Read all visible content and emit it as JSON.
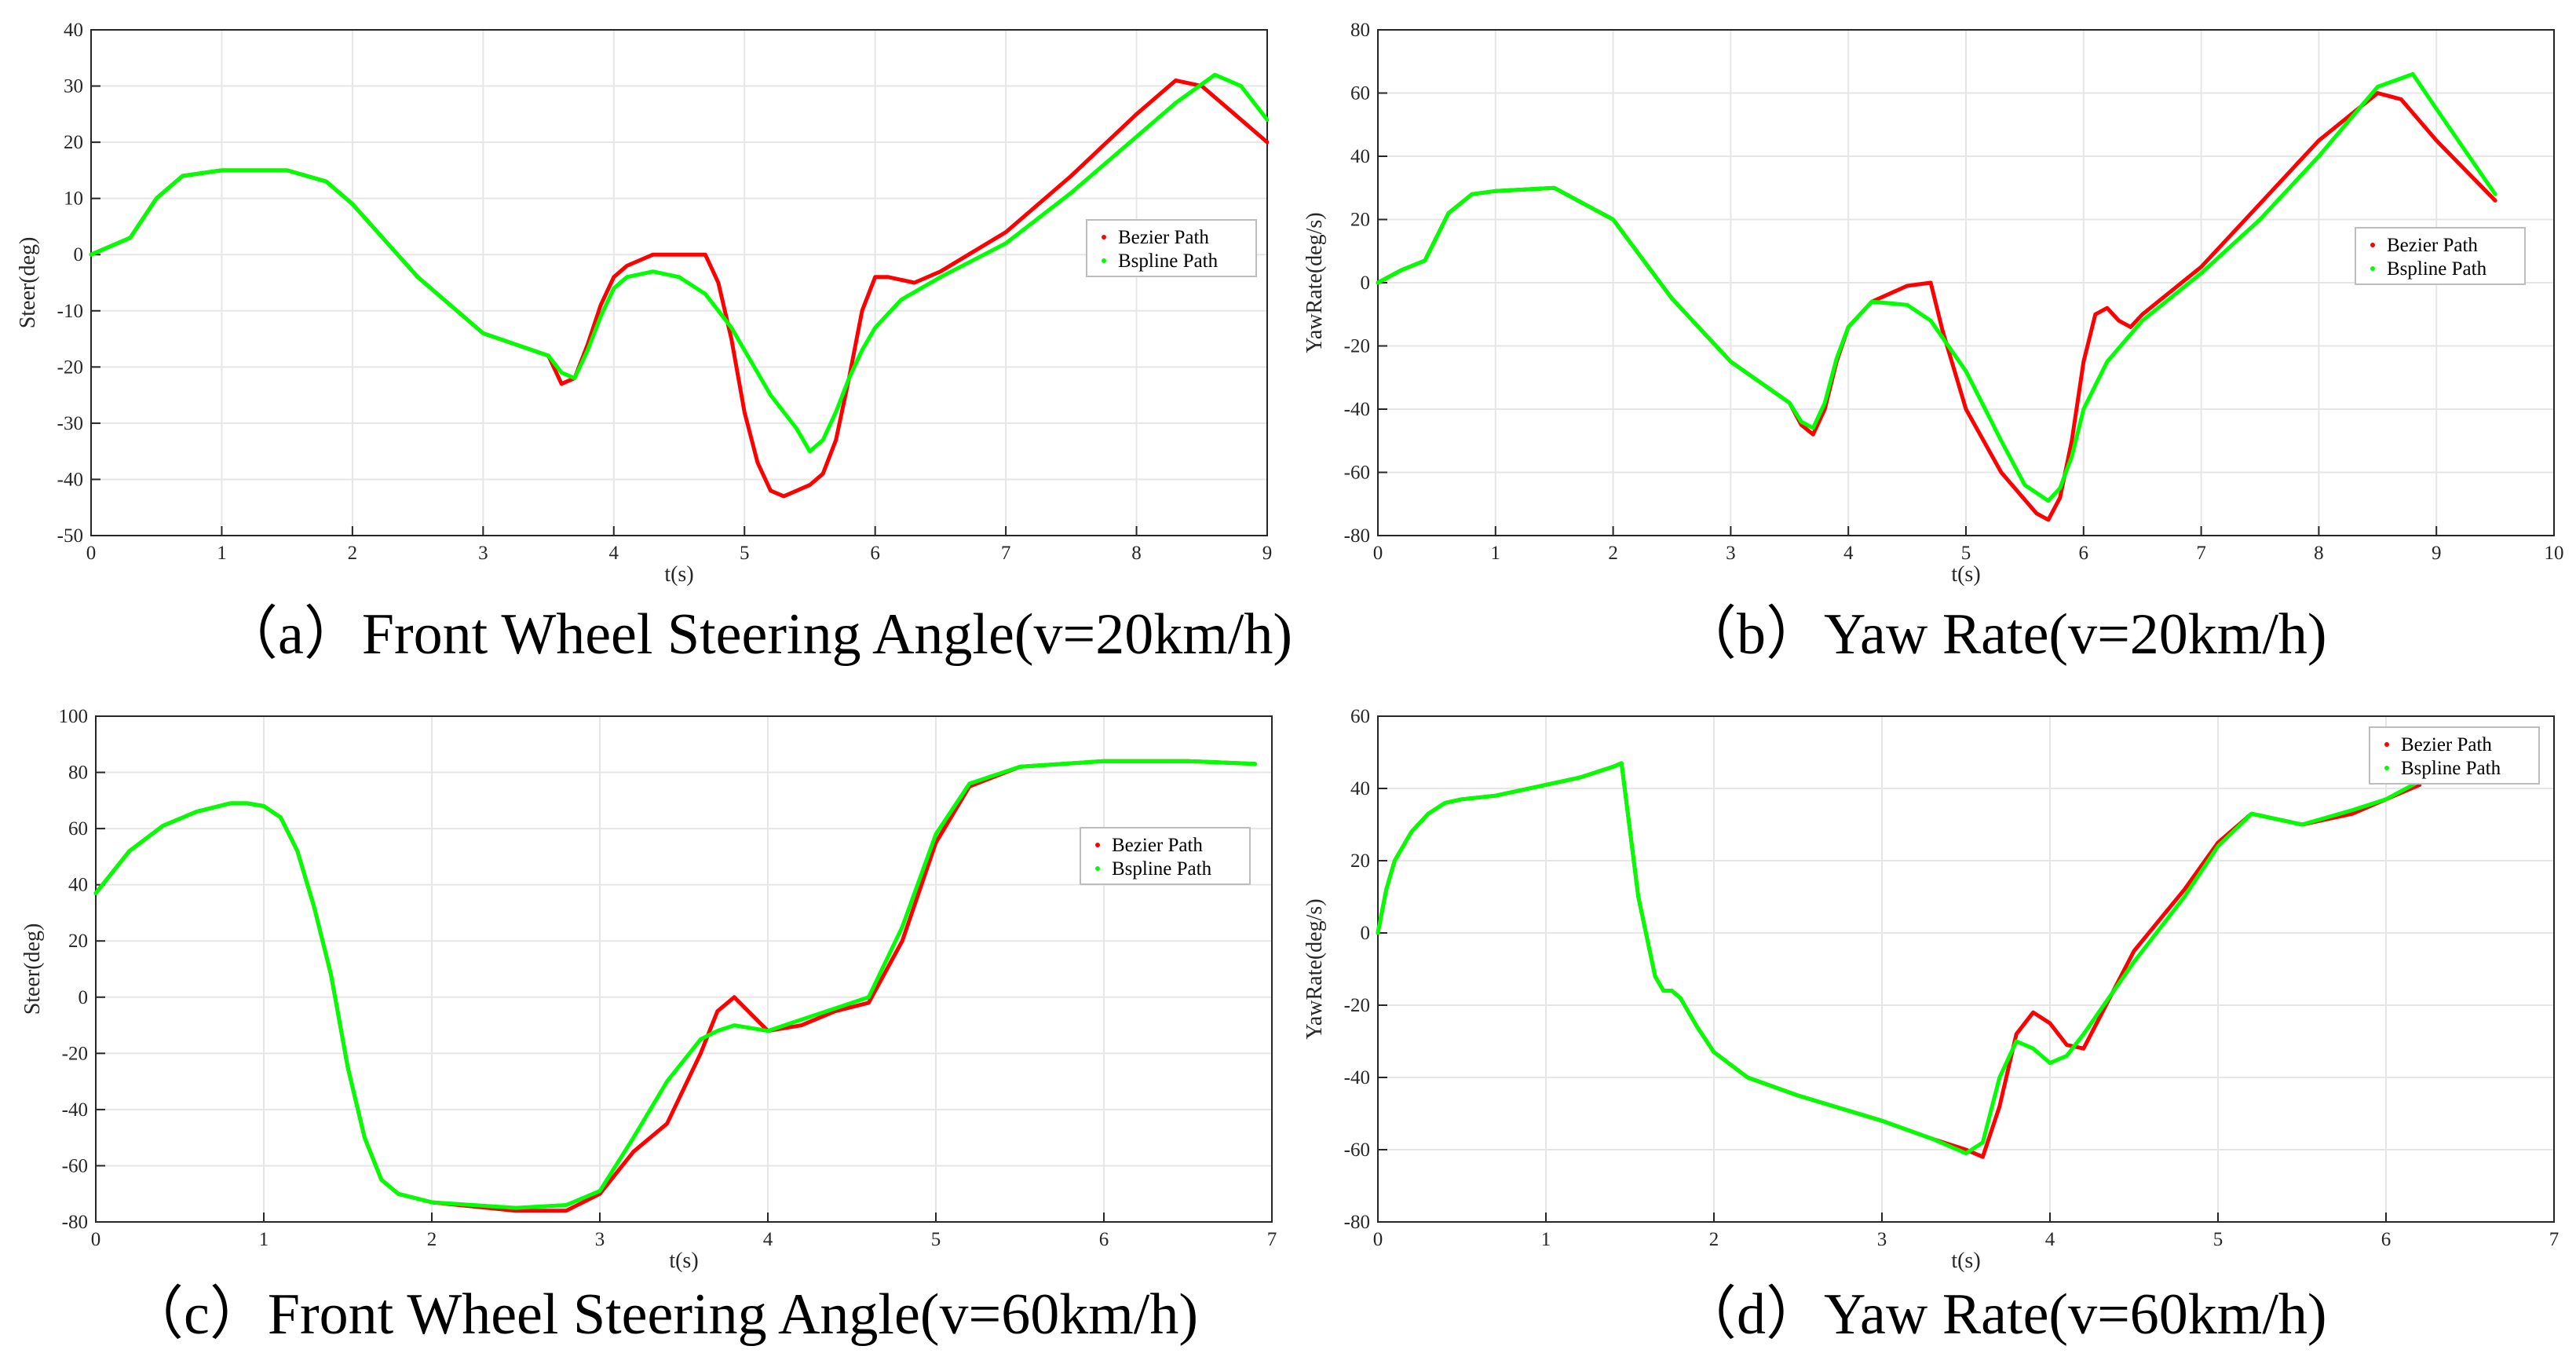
{
  "colors": {
    "bezier": "#ff0000",
    "bspline": "#00ff00"
  },
  "chart_data": [
    {
      "type": "line",
      "caption": "（a）Front Wheel Steering Angle(v=20km/h)",
      "xlabel": "t(s)",
      "ylabel": "Steer(deg)",
      "xlim": [
        0,
        9
      ],
      "ylim": [
        -50,
        40
      ],
      "xticks": [
        0,
        1,
        2,
        3,
        4,
        5,
        6,
        7,
        8,
        9
      ],
      "yticks": [
        -50,
        -40,
        -30,
        -20,
        -10,
        0,
        10,
        20,
        30,
        40
      ],
      "grid": true,
      "legend_position": "right",
      "series": [
        {
          "name": "Bezier Path",
          "color": "#ff0000",
          "x": [
            0,
            0.3,
            0.5,
            0.7,
            1.0,
            1.5,
            1.8,
            2.0,
            2.5,
            3.0,
            3.5,
            3.6,
            3.7,
            3.8,
            3.9,
            4.0,
            4.1,
            4.3,
            4.5,
            4.7,
            4.8,
            4.9,
            5.0,
            5.1,
            5.2,
            5.3,
            5.4,
            5.5,
            5.6,
            5.7,
            5.8,
            5.9,
            6.0,
            6.1,
            6.3,
            6.5,
            7.0,
            7.5,
            8.0,
            8.3,
            8.5,
            8.7,
            9.0
          ],
          "y": [
            0,
            3,
            10,
            14,
            15,
            15,
            13,
            9,
            -4,
            -14,
            -18,
            -23,
            -22,
            -16,
            -9,
            -4,
            -2,
            0,
            0,
            0,
            -5,
            -15,
            -28,
            -37,
            -42,
            -43,
            -42,
            -41,
            -39,
            -33,
            -22,
            -10,
            -4,
            -4,
            -5,
            -3,
            4,
            14,
            25,
            31,
            30,
            26,
            20
          ]
        },
        {
          "name": "Bspline Path",
          "color": "#00ff00",
          "x": [
            0,
            0.3,
            0.5,
            0.7,
            1.0,
            1.5,
            1.8,
            2.0,
            2.5,
            3.0,
            3.5,
            3.6,
            3.7,
            3.8,
            3.9,
            4.0,
            4.1,
            4.3,
            4.5,
            4.7,
            4.9,
            5.0,
            5.1,
            5.2,
            5.3,
            5.4,
            5.5,
            5.6,
            5.7,
            5.8,
            5.9,
            6.0,
            6.2,
            6.5,
            7.0,
            7.5,
            8.0,
            8.3,
            8.6,
            8.8,
            9.0
          ],
          "y": [
            0,
            3,
            10,
            14,
            15,
            15,
            13,
            9,
            -4,
            -14,
            -18,
            -21,
            -22,
            -17,
            -11,
            -6,
            -4,
            -3,
            -4,
            -7,
            -13,
            -17,
            -21,
            -25,
            -28,
            -31,
            -35,
            -33,
            -28,
            -22,
            -17,
            -13,
            -8,
            -4,
            2,
            11,
            21,
            27,
            32,
            30,
            24
          ]
        }
      ]
    },
    {
      "type": "line",
      "caption": "（b）Yaw Rate(v=20km/h)",
      "xlabel": "t(s)",
      "ylabel": "YawRate(deg/s)",
      "xlim": [
        0,
        10
      ],
      "ylim": [
        -80,
        80
      ],
      "xticks": [
        0,
        1,
        2,
        3,
        4,
        5,
        6,
        7,
        8,
        9,
        10
      ],
      "yticks": [
        -80,
        -60,
        -40,
        -20,
        0,
        20,
        40,
        60,
        80
      ],
      "grid": true,
      "legend_position": "right",
      "series": [
        {
          "name": "Bezier Path",
          "color": "#ff0000",
          "x": [
            0,
            0.2,
            0.4,
            0.6,
            0.8,
            1.0,
            1.5,
            2.0,
            2.5,
            3.0,
            3.5,
            3.6,
            3.7,
            3.8,
            3.9,
            4.0,
            4.2,
            4.5,
            4.7,
            4.8,
            5.0,
            5.3,
            5.6,
            5.7,
            5.8,
            5.9,
            6.0,
            6.1,
            6.2,
            6.3,
            6.4,
            6.5,
            7.0,
            7.5,
            8.0,
            8.5,
            8.7,
            9.0,
            9.5
          ],
          "y": [
            0,
            4,
            7,
            22,
            28,
            29,
            30,
            20,
            -5,
            -25,
            -38,
            -45,
            -48,
            -40,
            -25,
            -14,
            -6,
            -1,
            0,
            -15,
            -40,
            -60,
            -73,
            -75,
            -68,
            -50,
            -25,
            -10,
            -8,
            -12,
            -14,
            -10,
            5,
            25,
            45,
            60,
            58,
            45,
            26
          ]
        },
        {
          "name": "Bspline Path",
          "color": "#00ff00",
          "x": [
            0,
            0.2,
            0.4,
            0.6,
            0.8,
            1.0,
            1.5,
            2.0,
            2.5,
            3.0,
            3.5,
            3.6,
            3.7,
            3.8,
            3.9,
            4.0,
            4.2,
            4.5,
            4.7,
            5.0,
            5.3,
            5.5,
            5.7,
            5.8,
            5.9,
            6.0,
            6.2,
            6.5,
            7.0,
            7.5,
            8.0,
            8.5,
            8.8,
            9.0,
            9.5
          ],
          "y": [
            0,
            4,
            7,
            22,
            28,
            29,
            30,
            20,
            -5,
            -25,
            -38,
            -44,
            -46,
            -38,
            -24,
            -14,
            -6,
            -7,
            -12,
            -28,
            -50,
            -64,
            -69,
            -65,
            -55,
            -40,
            -25,
            -12,
            3,
            20,
            40,
            62,
            66,
            55,
            28
          ]
        }
      ]
    },
    {
      "type": "line",
      "caption": "（c）Front Wheel Steering Angle(v=60km/h)",
      "xlabel": "t(s)",
      "ylabel": "Steer(deg)",
      "xlim": [
        0,
        7
      ],
      "ylim": [
        -80,
        100
      ],
      "xticks": [
        0,
        1,
        2,
        3,
        4,
        5,
        6,
        7
      ],
      "yticks": [
        -80,
        -60,
        -40,
        -20,
        0,
        20,
        40,
        60,
        80,
        100
      ],
      "grid": true,
      "legend_position": "right",
      "series": [
        {
          "name": "Bezier Path",
          "color": "#ff0000",
          "x": [
            0,
            0.2,
            0.4,
            0.6,
            0.8,
            0.9,
            1.0,
            1.1,
            1.2,
            1.3,
            1.4,
            1.5,
            1.6,
            1.7,
            1.8,
            2.0,
            2.5,
            2.8,
            3.0,
            3.2,
            3.4,
            3.6,
            3.7,
            3.8,
            4.0,
            4.2,
            4.4,
            4.6,
            4.8,
            5.0,
            5.2,
            5.5,
            6.0,
            6.2,
            6.5,
            6.9
          ],
          "y": [
            37,
            52,
            61,
            66,
            69,
            69,
            68,
            64,
            52,
            32,
            8,
            -25,
            -50,
            -65,
            -70,
            -73,
            -76,
            -76,
            -70,
            -55,
            -45,
            -20,
            -5,
            0,
            -12,
            -10,
            -5,
            -2,
            20,
            55,
            75,
            82,
            84,
            84,
            84,
            83
          ]
        },
        {
          "name": "Bspline Path",
          "color": "#00ff00",
          "x": [
            0,
            0.2,
            0.4,
            0.6,
            0.8,
            0.9,
            1.0,
            1.1,
            1.2,
            1.3,
            1.4,
            1.5,
            1.6,
            1.7,
            1.8,
            2.0,
            2.5,
            2.8,
            3.0,
            3.2,
            3.4,
            3.6,
            3.7,
            3.8,
            4.0,
            4.2,
            4.4,
            4.6,
            4.8,
            5.0,
            5.2,
            5.5,
            6.0,
            6.2,
            6.5,
            6.9
          ],
          "y": [
            37,
            52,
            61,
            66,
            69,
            69,
            68,
            64,
            52,
            32,
            8,
            -25,
            -50,
            -65,
            -70,
            -73,
            -75,
            -74,
            -69,
            -50,
            -30,
            -15,
            -12,
            -10,
            -12,
            -8,
            -4,
            0,
            25,
            58,
            76,
            82,
            84,
            84,
            84,
            83
          ]
        }
      ]
    },
    {
      "type": "line",
      "caption": "（d）Yaw Rate(v=60km/h)",
      "xlabel": "t(s)",
      "ylabel": "YawRate(deg/s)",
      "xlim": [
        0,
        7
      ],
      "ylim": [
        -80,
        60
      ],
      "xticks": [
        0,
        1,
        2,
        3,
        4,
        5,
        6,
        7
      ],
      "yticks": [
        -80,
        -60,
        -40,
        -20,
        0,
        20,
        40,
        60
      ],
      "grid": true,
      "legend_position": "top-right",
      "series": [
        {
          "name": "Bezier Path",
          "color": "#ff0000",
          "x": [
            0,
            0.05,
            0.1,
            0.2,
            0.3,
            0.4,
            0.5,
            0.7,
            1.0,
            1.2,
            1.4,
            1.45,
            1.55,
            1.65,
            1.7,
            1.75,
            1.8,
            1.9,
            2.0,
            2.2,
            2.5,
            3.0,
            3.3,
            3.5,
            3.6,
            3.7,
            3.8,
            3.9,
            4.0,
            4.1,
            4.2,
            4.5,
            4.8,
            5.0,
            5.2,
            5.5,
            5.8,
            6.0,
            6.2
          ],
          "y": [
            0,
            12,
            20,
            28,
            33,
            36,
            37,
            38,
            41,
            43,
            46,
            47,
            10,
            -12,
            -16,
            -16,
            -18,
            -26,
            -33,
            -40,
            -45,
            -52,
            -57,
            -60,
            -62,
            -48,
            -28,
            -22,
            -25,
            -31,
            -32,
            -5,
            12,
            25,
            33,
            30,
            33,
            37,
            41
          ]
        },
        {
          "name": "Bspline Path",
          "color": "#00ff00",
          "x": [
            0,
            0.05,
            0.1,
            0.2,
            0.3,
            0.4,
            0.5,
            0.7,
            1.0,
            1.2,
            1.4,
            1.45,
            1.55,
            1.65,
            1.7,
            1.75,
            1.8,
            1.9,
            2.0,
            2.2,
            2.5,
            3.0,
            3.3,
            3.5,
            3.6,
            3.7,
            3.8,
            3.9,
            4.0,
            4.1,
            4.2,
            4.5,
            4.8,
            5.0,
            5.2,
            5.5,
            5.8,
            6.0,
            6.2
          ],
          "y": [
            0,
            12,
            20,
            28,
            33,
            36,
            37,
            38,
            41,
            43,
            46,
            47,
            10,
            -12,
            -16,
            -16,
            -18,
            -26,
            -33,
            -40,
            -45,
            -52,
            -57,
            -61,
            -58,
            -40,
            -30,
            -32,
            -36,
            -34,
            -28,
            -8,
            10,
            24,
            33,
            30,
            34,
            37,
            42
          ]
        }
      ]
    }
  ]
}
